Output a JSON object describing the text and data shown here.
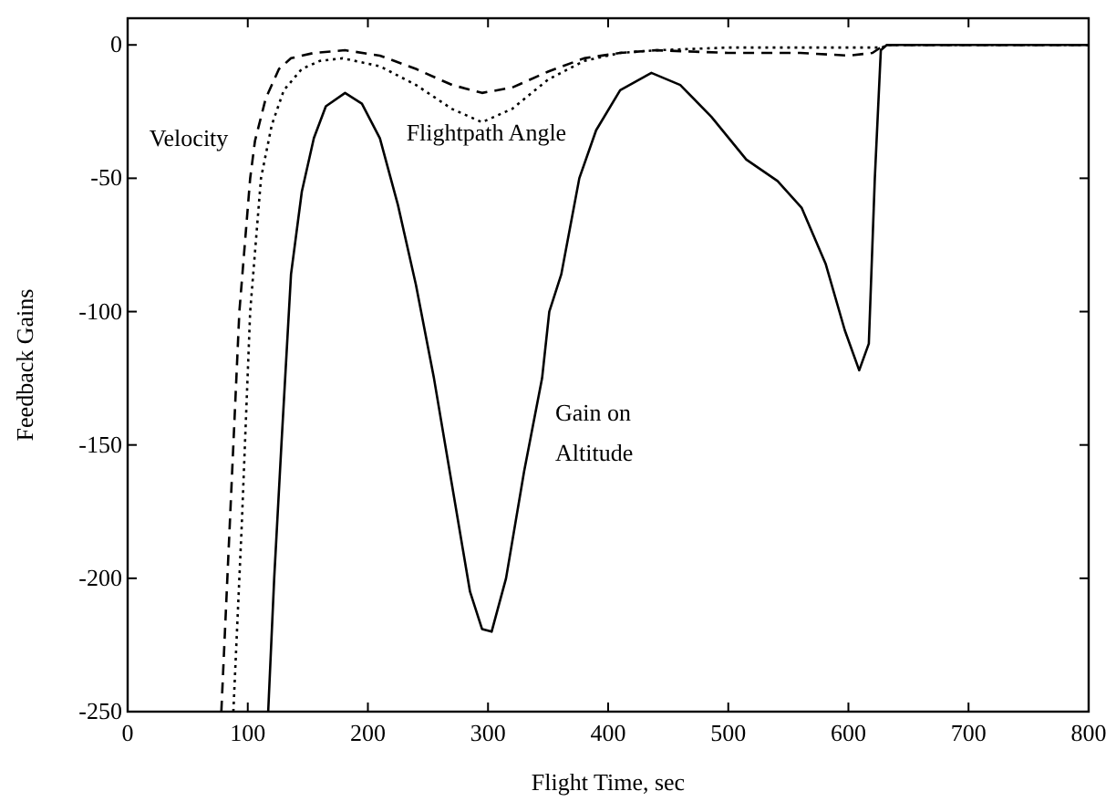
{
  "chart_data": {
    "type": "line",
    "xlabel": "Flight Time, sec",
    "ylabel": "Feedback Gains",
    "xlim": [
      0,
      800
    ],
    "ylim": [
      -250,
      10
    ],
    "xticks": [
      0,
      100,
      200,
      300,
      400,
      500,
      600,
      700,
      800
    ],
    "yticks": [
      -250,
      -200,
      -150,
      -100,
      -50,
      0
    ],
    "grid": false,
    "marker": "none",
    "series": [
      {
        "name": "Velocity",
        "color": "#000000",
        "line_style": "dashed",
        "x": [
          78,
          85,
          93,
          102,
          106,
          115,
          126,
          136,
          155,
          181,
          210,
          240,
          270,
          295,
          320,
          350,
          380,
          410,
          440,
          500,
          560,
          600,
          620,
          630,
          800
        ],
        "values": [
          -250,
          -180,
          -100,
          -50,
          -36,
          -20,
          -9,
          -5,
          -3,
          -2,
          -4,
          -9,
          -15,
          -18,
          -16,
          -10,
          -5,
          -3,
          -2,
          -3,
          -3,
          -4,
          -3,
          0,
          0
        ]
      },
      {
        "name": "Flightpath Angle",
        "color": "#000000",
        "line_style": "dotted",
        "x": [
          88,
          95,
          102,
          111,
          120,
          130,
          145,
          160,
          179,
          210,
          240,
          270,
          295,
          320,
          350,
          380,
          410,
          440,
          500,
          600,
          628,
          632,
          800
        ],
        "values": [
          -250,
          -180,
          -100,
          -50,
          -30,
          -17,
          -9,
          -6,
          -5,
          -8,
          -15,
          -24,
          -29,
          -24,
          -13,
          -6,
          -3,
          -2,
          -1,
          -1,
          -1,
          0,
          0
        ]
      },
      {
        "name": "Gain on Altitude",
        "color": "#000000",
        "line_style": "solid",
        "x": [
          117,
          122,
          128,
          136,
          145,
          155,
          165,
          181,
          195,
          210,
          225,
          240,
          255,
          270,
          285,
          295,
          303,
          315,
          330,
          345,
          351,
          361,
          376,
          390,
          410,
          436,
          460,
          486,
          515,
          541,
          561,
          581,
          597,
          609,
          617,
          622,
          627,
          632,
          800
        ],
        "values": [
          -250,
          -200,
          -150,
          -86,
          -55,
          -35,
          -23,
          -18,
          -22,
          -35,
          -60,
          -90,
          -125,
          -165,
          -205,
          -219,
          -220,
          -200,
          -160,
          -125,
          -100,
          -86,
          -50,
          -32,
          -17,
          -10.5,
          -15,
          -27,
          -43,
          -51,
          -61,
          -82,
          -107,
          -122,
          -112,
          -50,
          -2,
          0,
          0
        ]
      }
    ]
  }
}
